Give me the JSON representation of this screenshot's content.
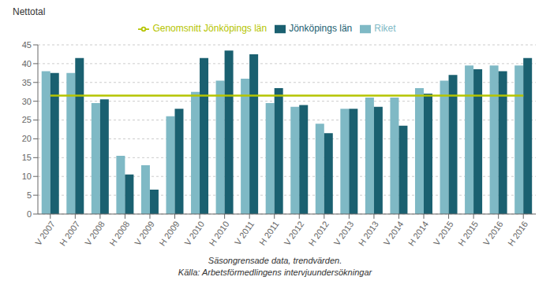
{
  "chart_data": {
    "type": "bar",
    "y_label": "Nettotal",
    "categories": [
      "V 2007",
      "H 2007",
      "V 2008",
      "H 2008",
      "V 2009",
      "H 2009",
      "V 2010",
      "H 2010",
      "V 2011",
      "H 2011",
      "V 2012",
      "H 2012",
      "V 2013",
      "H 2013",
      "V 2014",
      "H 2014",
      "V 2015",
      "H 2015",
      "V 2016",
      "H 2016"
    ],
    "series": [
      {
        "name": "Riket",
        "color": "#7fb9c5",
        "values": [
          38.0,
          37.5,
          29.5,
          15.5,
          13.0,
          26.0,
          32.5,
          35.5,
          36.0,
          29.5,
          28.5,
          24.0,
          28.0,
          31.0,
          31.0,
          33.5,
          35.5,
          39.5,
          39.5,
          39.5
        ]
      },
      {
        "name": "Jönköpings län",
        "color": "#1a6070",
        "values": [
          37.5,
          41.5,
          30.5,
          10.5,
          6.5,
          28.0,
          41.5,
          43.5,
          42.5,
          33.5,
          29.0,
          21.5,
          28.0,
          28.5,
          23.5,
          32.0,
          37.0,
          38.5,
          38.0,
          41.5
        ]
      },
      {
        "name": "Genomsnitt Jönköpings län",
        "type": "line",
        "color": "#b5c400",
        "values": [
          31.5,
          31.5,
          31.5,
          31.5,
          31.5,
          31.5,
          31.5,
          31.5,
          31.5,
          31.5,
          31.5,
          31.5,
          31.5,
          31.5,
          31.5,
          31.5,
          31.5,
          31.5,
          31.5,
          31.5
        ]
      }
    ],
    "ylim": [
      0,
      45
    ],
    "yticks": [
      0,
      5,
      10,
      15,
      20,
      25,
      30,
      35,
      40,
      45
    ],
    "grid": true,
    "annotations": [
      "Säsongrensade data, trendvärden.",
      "Källa: Arbetsförmedlingens intervjuundersökningar"
    ]
  }
}
